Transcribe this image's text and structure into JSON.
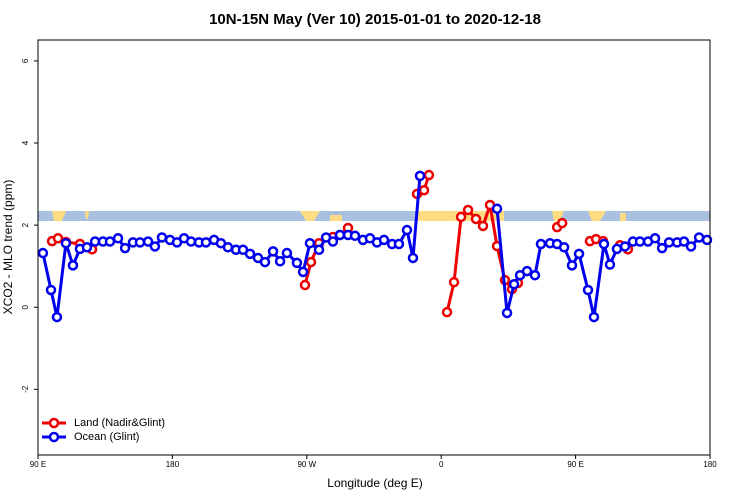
{
  "chart_data": {
    "type": "line",
    "title": "10N-15N May (Ver 10)   2015-01-01 to 2020-12-18",
    "x_label": "Longitude (deg E)",
    "y_label": "XCO2 - MLO trend (ppm)",
    "xlim": [
      90,
      540
    ],
    "xticks": [
      {
        "value": 90,
        "label": "90 E"
      },
      180,
      {
        "value": 270,
        "label": "90 W"
      },
      {
        "value": 360,
        "label": "0"
      },
      {
        "value": 450,
        "label": "90 E"
      },
      {
        "value": 540,
        "label": "180"
      }
    ],
    "ylim": [
      -3.6,
      6.51
    ],
    "yticks": [
      -2,
      0,
      2,
      4,
      6
    ],
    "legend": "bottomleft",
    "series": [
      {
        "name": "Land (Nadir&Glint)",
        "color": "#ee0000",
        "x": [
          99.4,
          103.4,
          108.7,
          118.1,
          126.2,
          200,
          268.8,
          272.8,
          278.2,
          284,
          287.5,
          292.2,
          297.6,
          310,
          343.8,
          348.5,
          351.8,
          355,
          363.9,
          368.6,
          373.3,
          378,
          383.3,
          388,
          392.7,
          397.4,
          402.7,
          407.4,
          411.4,
          500,
          437.6,
          441,
          445,
          459.6,
          463.7,
          468.4,
          472,
          479.7,
          485
        ],
        "values": [
          1.61,
          1.68,
          1.59,
          1.54,
          1.41,
          null,
          0.54,
          1.1,
          1.56,
          null,
          1.71,
          1.76,
          1.93,
          null,
          2.76,
          2.85,
          3.22,
          null,
          -0.12,
          0.61,
          2.2,
          2.37,
          2.15,
          1.98,
          2.49,
          1.49,
          0.66,
          0.44,
          0.59,
          null,
          1.95,
          2.05,
          null,
          1.61,
          1.66,
          1.61,
          null,
          1.51,
          1.41
        ]
      },
      {
        "name": "Ocean (Glint)",
        "color": "#0000ee",
        "x": [
          93.3,
          98.7,
          102.7,
          108.7,
          113.4,
          118.1,
          122.8,
          128.2,
          133.5,
          138.2,
          143.6,
          148.3,
          153.6,
          158.3,
          163.7,
          168.3,
          173,
          178.4,
          183.1,
          187.8,
          192.5,
          197.8,
          202.5,
          207.9,
          212.5,
          217.2,
          222.6,
          227.3,
          232,
          237.3,
          242,
          247.4,
          252.1,
          256.7,
          263.4,
          267.5,
          272.1,
          278.2,
          282.9,
          287.5,
          292.2,
          297.6,
          302.3,
          307.6,
          312.3,
          317,
          321.7,
          327.1,
          331.7,
          337.1,
          341.1,
          345.8,
          370,
          397.4,
          404.1,
          408.8,
          412.8,
          417.5,
          422.8,
          426.8,
          432.9,
          437.6,
          442.3,
          447.6,
          452.3,
          458.3,
          462.3,
          469,
          473,
          477.7,
          483.1,
          488.4,
          493.1,
          498.5,
          503.2,
          507.9,
          512.6,
          518,
          522.6,
          527.3,
          532.7,
          538
        ],
        "values": [
          1.32,
          0.42,
          -0.24,
          1.56,
          1.02,
          1.42,
          1.46,
          1.6,
          1.6,
          1.6,
          1.68,
          1.44,
          1.58,
          1.58,
          1.6,
          1.48,
          1.7,
          1.64,
          1.58,
          1.68,
          1.6,
          1.58,
          1.58,
          1.64,
          1.56,
          1.46,
          1.4,
          1.4,
          1.3,
          1.2,
          1.1,
          1.36,
          1.12,
          1.32,
          1.08,
          0.86,
          1.56,
          1.4,
          1.7,
          1.6,
          1.76,
          1.76,
          1.74,
          1.64,
          1.68,
          1.58,
          1.64,
          1.54,
          1.54,
          1.88,
          1.2,
          3.2,
          null,
          2.4,
          -0.14,
          0.56,
          0.78,
          0.88,
          0.78,
          1.54,
          1.56,
          1.54,
          1.46,
          1.02,
          1.3,
          0.42,
          -0.24,
          1.54,
          1.04,
          1.42,
          1.48,
          1.6,
          1.6,
          1.6,
          1.68,
          1.44,
          1.58,
          1.58,
          1.6,
          1.48,
          1.7,
          1.64
        ]
      }
    ]
  }
}
